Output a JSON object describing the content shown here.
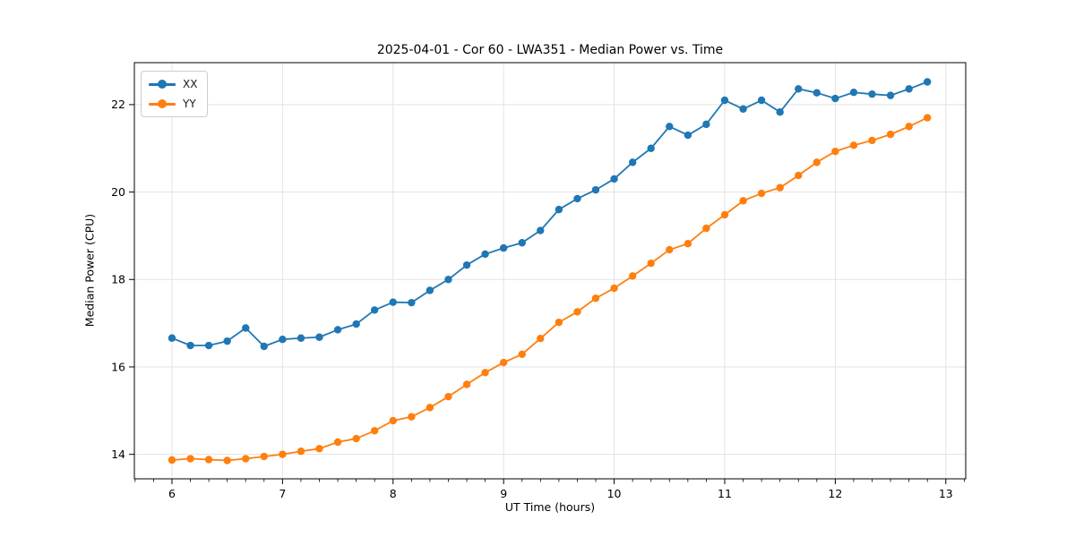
{
  "window": {
    "title": "2025-04-01 - Cor 60 - LWA351 - Median Power vs. Time"
  },
  "chart_data": {
    "type": "line",
    "title": "2025-04-01 - Cor 60 - LWA351 - Median Power vs. Time",
    "xlabel": "UT Time (hours)",
    "ylabel": "Median Power (CPU)",
    "xlim": [
      5.66,
      13.18
    ],
    "ylim": [
      13.44,
      22.96
    ],
    "x_major_ticks": [
      6,
      7,
      8,
      9,
      10,
      11,
      12,
      13
    ],
    "x_minor_tick_step": 0.16667,
    "y_major_ticks": [
      14,
      16,
      18,
      20,
      22
    ],
    "grid": true,
    "legend_position": "upper left",
    "x": [
      6.0,
      6.167,
      6.333,
      6.5,
      6.667,
      6.833,
      7.0,
      7.167,
      7.333,
      7.5,
      7.667,
      7.833,
      8.0,
      8.167,
      8.333,
      8.5,
      8.667,
      8.833,
      9.0,
      9.167,
      9.333,
      9.5,
      9.667,
      9.833,
      10.0,
      10.167,
      10.333,
      10.5,
      10.667,
      10.833,
      11.0,
      11.167,
      11.333,
      11.5,
      11.667,
      11.833,
      12.0,
      12.167,
      12.333,
      12.5,
      12.667,
      12.833
    ],
    "series": [
      {
        "name": "XX",
        "color": "#1f77b4",
        "values": [
          16.66,
          16.49,
          16.49,
          16.59,
          16.89,
          16.47,
          16.63,
          16.66,
          16.68,
          16.85,
          16.98,
          17.3,
          17.48,
          17.47,
          17.75,
          18.0,
          18.33,
          18.58,
          18.72,
          18.84,
          19.12,
          19.6,
          19.85,
          20.05,
          20.3,
          20.68,
          21.0,
          21.5,
          21.3,
          21.55,
          22.1,
          21.9,
          22.1,
          21.83,
          22.36,
          22.27,
          22.14,
          22.28,
          22.24,
          22.21,
          22.36,
          22.52
        ]
      },
      {
        "name": "YY",
        "color": "#ff7f0e",
        "values": [
          13.87,
          13.9,
          13.88,
          13.86,
          13.9,
          13.95,
          14.0,
          14.07,
          14.13,
          14.28,
          14.36,
          14.54,
          14.77,
          14.86,
          15.07,
          15.32,
          15.6,
          15.87,
          16.1,
          16.29,
          16.65,
          17.02,
          17.26,
          17.57,
          17.8,
          18.08,
          18.37,
          18.68,
          18.82,
          19.17,
          19.48,
          19.8,
          19.97,
          20.1,
          20.38,
          20.68,
          20.93,
          21.07,
          21.18,
          21.32,
          21.5,
          21.7
        ]
      }
    ],
    "style": {
      "grid_color": "#e3e3e3",
      "spine_color": "#000000",
      "tick_color": "#000000",
      "text_color": "#000000"
    }
  }
}
